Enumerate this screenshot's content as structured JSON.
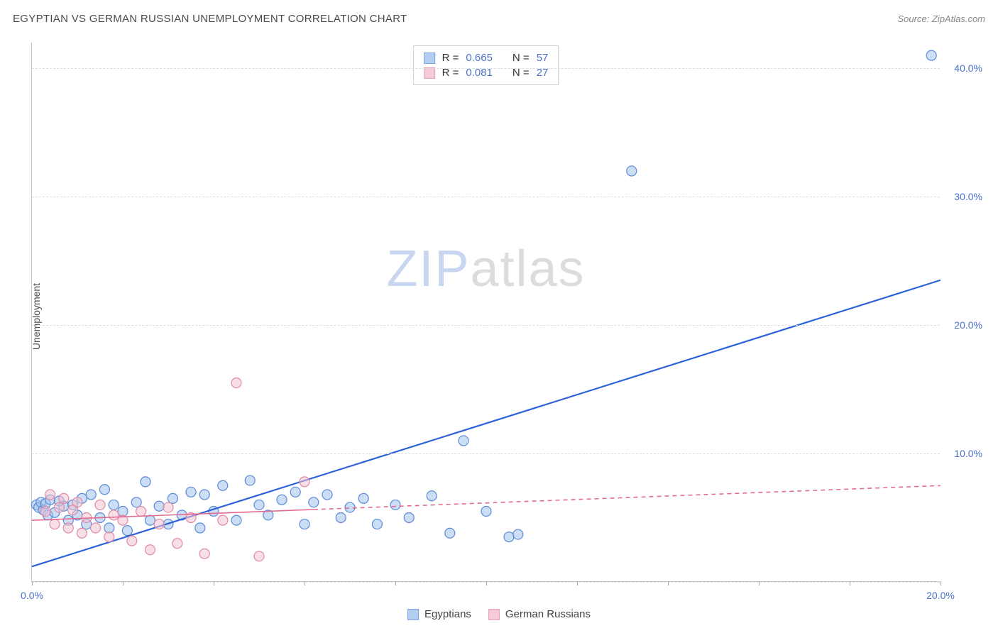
{
  "title": "EGYPTIAN VS GERMAN RUSSIAN UNEMPLOYMENT CORRELATION CHART",
  "source_label": "Source: ZipAtlas.com",
  "y_axis_label": "Unemployment",
  "watermark_zip": "ZIP",
  "watermark_atlas": "atlas",
  "chart": {
    "type": "scatter",
    "xlim": [
      0,
      20
    ],
    "ylim": [
      0,
      42
    ],
    "x_ticks": [
      0,
      2,
      4,
      6,
      8,
      10,
      12,
      14,
      16,
      18,
      20
    ],
    "x_tick_labels_shown": {
      "0": "0.0%",
      "20": "20.0%"
    },
    "y_ticks": [
      10,
      20,
      30,
      40
    ],
    "y_tick_labels": {
      "10": "10.0%",
      "20": "20.0%",
      "30": "30.0%",
      "40": "40.0%"
    },
    "gridlines_y": [
      0,
      10,
      20,
      30,
      40
    ],
    "background_color": "#ffffff",
    "grid_color": "#dddddd",
    "axis_color": "#c7c7c7",
    "point_radius": 7,
    "point_opacity": 0.55,
    "stroke_width": 1.2,
    "series": [
      {
        "name": "Egyptians",
        "fill": "#a3c3ed",
        "stroke": "#5b8bd6",
        "swatch_fill": "#b3cef1",
        "swatch_stroke": "#7aa4e0",
        "r_label": "R =",
        "r_value": "0.665",
        "n_label": "N =",
        "n_value": "57",
        "trend": {
          "x1": 0,
          "y1": 1.2,
          "x2": 20,
          "y2": 23.5,
          "solid_until_x": 20,
          "color": "#2e62d9",
          "width": 2.2
        },
        "points": [
          [
            0.1,
            6.0
          ],
          [
            0.15,
            5.8
          ],
          [
            0.2,
            6.2
          ],
          [
            0.25,
            5.6
          ],
          [
            0.3,
            6.1
          ],
          [
            0.35,
            5.2
          ],
          [
            0.4,
            6.4
          ],
          [
            0.5,
            5.4
          ],
          [
            0.6,
            6.3
          ],
          [
            0.7,
            5.9
          ],
          [
            0.8,
            4.8
          ],
          [
            0.9,
            6.0
          ],
          [
            1.0,
            5.2
          ],
          [
            1.1,
            6.5
          ],
          [
            1.2,
            4.5
          ],
          [
            1.3,
            6.8
          ],
          [
            1.5,
            5.0
          ],
          [
            1.6,
            7.2
          ],
          [
            1.7,
            4.2
          ],
          [
            1.8,
            6.0
          ],
          [
            2.0,
            5.5
          ],
          [
            2.1,
            4.0
          ],
          [
            2.3,
            6.2
          ],
          [
            2.5,
            7.8
          ],
          [
            2.6,
            4.8
          ],
          [
            2.8,
            5.9
          ],
          [
            3.0,
            4.5
          ],
          [
            3.1,
            6.5
          ],
          [
            3.3,
            5.2
          ],
          [
            3.5,
            7.0
          ],
          [
            3.7,
            4.2
          ],
          [
            3.8,
            6.8
          ],
          [
            4.0,
            5.5
          ],
          [
            4.2,
            7.5
          ],
          [
            4.5,
            4.8
          ],
          [
            4.8,
            7.9
          ],
          [
            5.0,
            6.0
          ],
          [
            5.2,
            5.2
          ],
          [
            5.5,
            6.4
          ],
          [
            5.8,
            7.0
          ],
          [
            6.0,
            4.5
          ],
          [
            6.2,
            6.2
          ],
          [
            6.5,
            6.8
          ],
          [
            6.8,
            5.0
          ],
          [
            7.0,
            5.8
          ],
          [
            7.3,
            6.5
          ],
          [
            7.6,
            4.5
          ],
          [
            8.0,
            6.0
          ],
          [
            8.3,
            5.0
          ],
          [
            8.8,
            6.7
          ],
          [
            9.2,
            3.8
          ],
          [
            9.5,
            11.0
          ],
          [
            10.0,
            5.5
          ],
          [
            10.5,
            3.5
          ],
          [
            10.7,
            3.7
          ],
          [
            13.2,
            32.0
          ],
          [
            19.8,
            41.0
          ]
        ]
      },
      {
        "name": "German Russians",
        "fill": "#f3c3d0",
        "stroke": "#e08aa4",
        "swatch_fill": "#f6cad7",
        "swatch_stroke": "#e8a0b7",
        "r_label": "R =",
        "r_value": "0.081",
        "n_label": "N =",
        "n_value": "27",
        "trend": {
          "x1": 0,
          "y1": 4.8,
          "x2": 20,
          "y2": 7.5,
          "solid_until_x": 6.2,
          "color": "#e36b8f",
          "width": 1.6,
          "dash": "6,5"
        },
        "points": [
          [
            0.3,
            5.5
          ],
          [
            0.4,
            6.8
          ],
          [
            0.5,
            4.5
          ],
          [
            0.6,
            5.8
          ],
          [
            0.7,
            6.5
          ],
          [
            0.8,
            4.2
          ],
          [
            0.9,
            5.6
          ],
          [
            1.0,
            6.2
          ],
          [
            1.1,
            3.8
          ],
          [
            1.2,
            5.0
          ],
          [
            1.4,
            4.2
          ],
          [
            1.5,
            6.0
          ],
          [
            1.7,
            3.5
          ],
          [
            1.8,
            5.2
          ],
          [
            2.0,
            4.8
          ],
          [
            2.2,
            3.2
          ],
          [
            2.4,
            5.5
          ],
          [
            2.6,
            2.5
          ],
          [
            2.8,
            4.5
          ],
          [
            3.0,
            5.8
          ],
          [
            3.2,
            3.0
          ],
          [
            3.5,
            5.0
          ],
          [
            3.8,
            2.2
          ],
          [
            4.2,
            4.8
          ],
          [
            4.5,
            15.5
          ],
          [
            5.0,
            2.0
          ],
          [
            6.0,
            7.8
          ]
        ]
      }
    ]
  },
  "bottom_legend": [
    {
      "label": "Egyptians",
      "fill": "#b3cef1",
      "stroke": "#7aa4e0"
    },
    {
      "label": "German Russians",
      "fill": "#f6cad7",
      "stroke": "#e8a0b7"
    }
  ]
}
